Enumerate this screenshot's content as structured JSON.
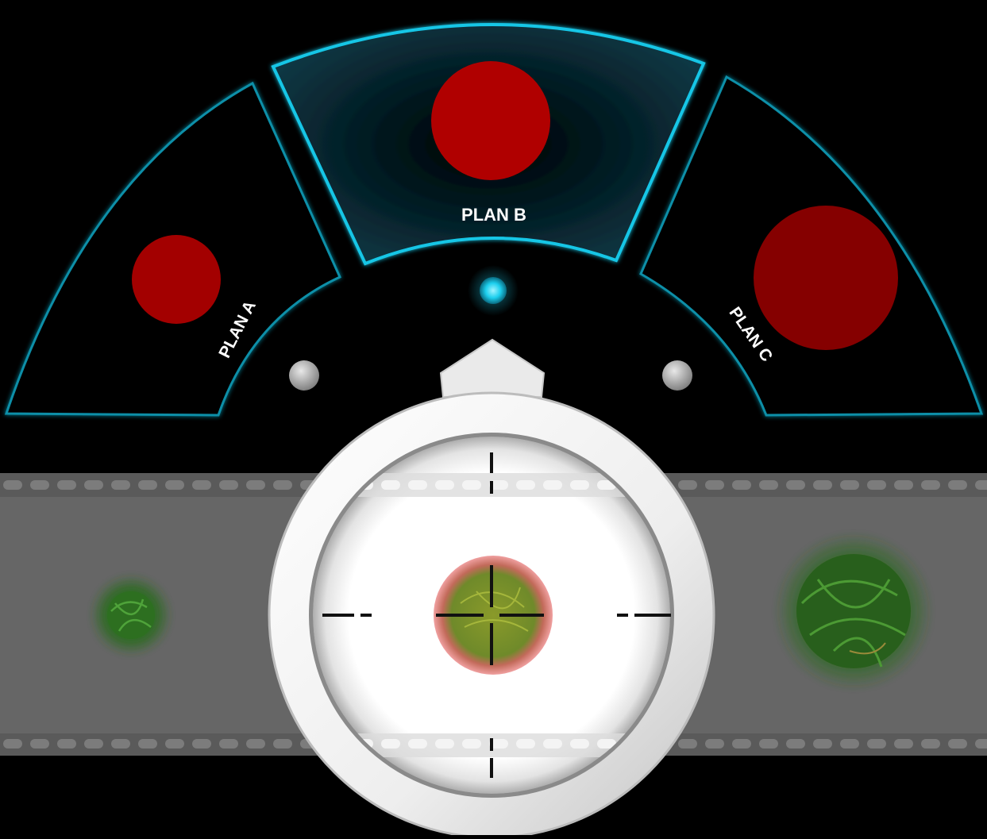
{
  "plan_selector": {
    "selected": "plan-b",
    "plans": [
      {
        "id": "plan-a",
        "label": "PLAN A",
        "marker": "red-circle-marker",
        "color": "#a30000"
      },
      {
        "id": "plan-b",
        "label": "PLAN B",
        "marker": "red-circle-marker",
        "color": "#b00000"
      },
      {
        "id": "plan-c",
        "label": "PLAN C",
        "marker": "red-circle-marker",
        "color": "#850000"
      }
    ],
    "indicators": [
      "plan-a-indicator",
      "plan-b-indicator",
      "plan-c-indicator"
    ]
  },
  "scope": {
    "icon": "crosshair-icon",
    "target": "bacteria-colony"
  },
  "conveyor": {
    "items": [
      "bacteria-colony-small",
      "bacteria-colony-targeted",
      "bacteria-colony-large"
    ]
  },
  "colors": {
    "background": "#000000",
    "accent": "#19c6e6",
    "panel_stroke": "#0e8fa8",
    "selected_fill": "#08313d",
    "belt": "#666666",
    "target_ring": "#e08a8a",
    "colony_green": "#2f7a22"
  }
}
